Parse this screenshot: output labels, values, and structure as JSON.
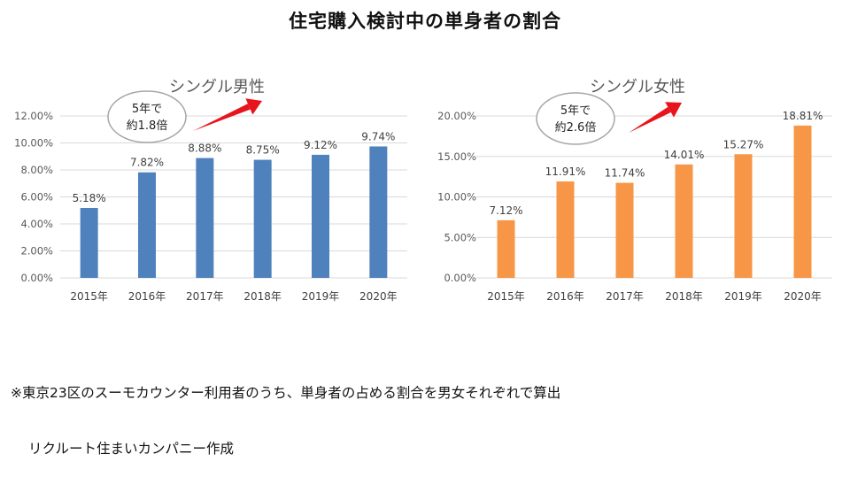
{
  "page": {
    "title": "住宅購入検討中の単身者の割合",
    "footnote_line1": "※東京23区のスーモカウンター利用者のうち、単身者の占める割合を男女それぞれで算出",
    "footnote_line2": "リクルート住まいカンパニー作成"
  },
  "chart_data": [
    {
      "type": "bar",
      "title": "シングル男性",
      "categories": [
        "2015年",
        "2016年",
        "2017年",
        "2018年",
        "2019年",
        "2020年"
      ],
      "values": [
        5.18,
        7.82,
        8.88,
        8.75,
        9.12,
        9.74
      ],
      "value_labels": [
        "5.18%",
        "7.82%",
        "8.88%",
        "8.75%",
        "9.12%",
        "9.74%"
      ],
      "yticks": [
        0,
        2,
        4,
        6,
        8,
        10,
        12
      ],
      "ytick_labels": [
        "0.00%",
        "2.00%",
        "4.00%",
        "6.00%",
        "8.00%",
        "10.00%",
        "12.00%"
      ],
      "ylim": [
        0,
        12
      ],
      "color": "#4f81bd",
      "grid": true,
      "annotation": {
        "line1": "5年で",
        "line2": "約1.8倍",
        "arrow_color": "#e8141c"
      }
    },
    {
      "type": "bar",
      "title": "シングル女性",
      "categories": [
        "2015年",
        "2016年",
        "2017年",
        "2018年",
        "2019年",
        "2020年"
      ],
      "values": [
        7.12,
        11.91,
        11.74,
        14.01,
        15.27,
        18.81
      ],
      "value_labels": [
        "7.12%",
        "11.91%",
        "11.74%",
        "14.01%",
        "15.27%",
        "18.81%"
      ],
      "yticks": [
        0,
        5,
        10,
        15,
        20
      ],
      "ytick_labels": [
        "0.00%",
        "5.00%",
        "10.00%",
        "15.00%",
        "20.00%"
      ],
      "ylim": [
        0,
        20
      ],
      "color": "#f79646",
      "grid": true,
      "annotation": {
        "line1": "5年で",
        "line2": "約2.6倍",
        "arrow_color": "#e8141c"
      }
    }
  ]
}
